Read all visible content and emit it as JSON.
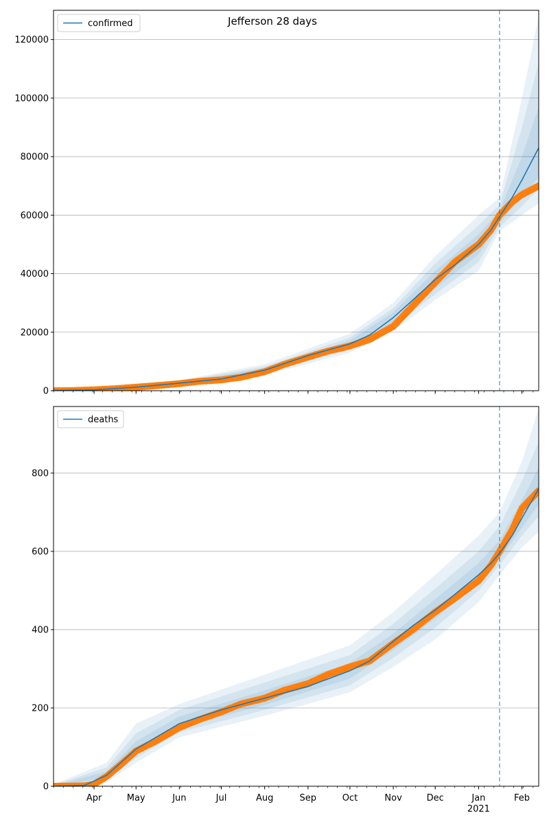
{
  "suptitle": "Jefferson 28 days",
  "colors": {
    "model": "#1f77b4",
    "observed": "#ff7f0e",
    "band": "#1f77b4",
    "grid": "#b0b0b0",
    "vline": "#1f77b4"
  },
  "x_axis": {
    "range": [
      "2020-03-03",
      "2021-02-13"
    ],
    "month_ticks": [
      {
        "date": "2020-04-01",
        "label": "Apr"
      },
      {
        "date": "2020-05-01",
        "label": "May"
      },
      {
        "date": "2020-06-01",
        "label": "Jun"
      },
      {
        "date": "2020-07-01",
        "label": "Jul"
      },
      {
        "date": "2020-08-01",
        "label": "Aug"
      },
      {
        "date": "2020-09-01",
        "label": "Sep"
      },
      {
        "date": "2020-10-01",
        "label": "Oct"
      },
      {
        "date": "2020-11-01",
        "label": "Nov"
      },
      {
        "date": "2020-12-01",
        "label": "Dec"
      },
      {
        "date": "2021-01-01",
        "label": "Jan"
      },
      {
        "date": "2021-02-01",
        "label": "Feb"
      }
    ],
    "year_label": {
      "date": "2021-01-01",
      "label": "2021"
    },
    "forecast_start": "2021-01-16"
  },
  "chart_data": [
    {
      "type": "line",
      "legend": {
        "label": "confirmed",
        "placement": "top-left"
      },
      "grid": true,
      "ylim": [
        0,
        130000
      ],
      "yticks": [
        0,
        20000,
        40000,
        60000,
        80000,
        100000,
        120000
      ],
      "model_line": [
        [
          "2020-03-03",
          100
        ],
        [
          "2020-04-01",
          300
        ],
        [
          "2020-05-01",
          1200
        ],
        [
          "2020-06-01",
          2600
        ],
        [
          "2020-07-01",
          4000
        ],
        [
          "2020-08-01",
          7000
        ],
        [
          "2020-09-01",
          12000
        ],
        [
          "2020-10-01",
          16000
        ],
        [
          "2020-10-15",
          19000
        ],
        [
          "2020-11-01",
          25000
        ],
        [
          "2020-11-15",
          31000
        ],
        [
          "2020-12-01",
          38000
        ],
        [
          "2020-12-15",
          43000
        ],
        [
          "2021-01-01",
          50000
        ],
        [
          "2021-01-10",
          55000
        ],
        [
          "2021-01-16",
          59500
        ],
        [
          "2021-01-25",
          66000
        ],
        [
          "2021-02-01",
          72000
        ],
        [
          "2021-02-13",
          83000
        ]
      ],
      "bands": [
        {
          "upper": [
            [
              "2020-03-03",
              200
            ],
            [
              "2020-06-01",
              3600
            ],
            [
              "2020-08-01",
              9000
            ],
            [
              "2020-10-01",
              19500
            ],
            [
              "2020-11-01",
              30000
            ],
            [
              "2020-12-01",
              46000
            ],
            [
              "2021-01-01",
              60000
            ],
            [
              "2021-01-16",
              66000
            ],
            [
              "2021-02-01",
              100000
            ],
            [
              "2021-02-13",
              128000
            ]
          ],
          "lower": [
            [
              "2020-03-03",
              0
            ],
            [
              "2020-06-01",
              1700
            ],
            [
              "2020-08-01",
              5300
            ],
            [
              "2020-10-01",
              13000
            ],
            [
              "2020-11-01",
              20500
            ],
            [
              "2020-12-01",
              31000
            ],
            [
              "2021-01-01",
              41000
            ],
            [
              "2021-01-16",
              54500
            ],
            [
              "2021-02-01",
              60000
            ],
            [
              "2021-02-13",
              64000
            ]
          ]
        },
        {
          "upper": [
            [
              "2020-03-03",
              170
            ],
            [
              "2020-06-01",
              3300
            ],
            [
              "2020-08-01",
              8300
            ],
            [
              "2020-10-01",
              18200
            ],
            [
              "2020-11-01",
              28200
            ],
            [
              "2020-12-01",
              43500
            ],
            [
              "2021-01-01",
              56500
            ],
            [
              "2021-01-16",
              63500
            ],
            [
              "2021-02-01",
              90000
            ],
            [
              "2021-02-13",
              112000
            ]
          ],
          "lower": [
            [
              "2020-03-03",
              30
            ],
            [
              "2020-06-01",
              2000
            ],
            [
              "2020-08-01",
              5900
            ],
            [
              "2020-10-01",
              14000
            ],
            [
              "2020-11-01",
              22000
            ],
            [
              "2020-12-01",
              33000
            ],
            [
              "2021-01-01",
              44000
            ],
            [
              "2021-01-16",
              56000
            ],
            [
              "2021-02-01",
              63000
            ],
            [
              "2021-02-13",
              69000
            ]
          ]
        },
        {
          "upper": [
            [
              "2020-03-03",
              140
            ],
            [
              "2020-06-01",
              3000
            ],
            [
              "2020-08-01",
              7700
            ],
            [
              "2020-10-01",
              17200
            ],
            [
              "2020-11-01",
              26800
            ],
            [
              "2020-12-01",
              41000
            ],
            [
              "2021-01-01",
              53500
            ],
            [
              "2021-01-16",
              61500
            ],
            [
              "2021-02-01",
              80000
            ],
            [
              "2021-02-13",
              97000
            ]
          ],
          "lower": [
            [
              "2020-03-03",
              60
            ],
            [
              "2020-06-01",
              2250
            ],
            [
              "2020-08-01",
              6400
            ],
            [
              "2020-10-01",
              14900
            ],
            [
              "2020-11-01",
              23300
            ],
            [
              "2020-12-01",
              35000
            ],
            [
              "2021-01-01",
              46500
            ],
            [
              "2021-01-16",
              57500
            ],
            [
              "2021-02-01",
              66000
            ],
            [
              "2021-02-13",
              73000
            ]
          ]
        }
      ],
      "observed": [
        [
          "2020-03-03",
          0
        ],
        [
          "2020-03-15",
          60
        ],
        [
          "2020-04-01",
          300
        ],
        [
          "2020-04-15",
          650
        ],
        [
          "2020-05-01",
          1200
        ],
        [
          "2020-05-15",
          1700
        ],
        [
          "2020-06-01",
          2400
        ],
        [
          "2020-06-15",
          3200
        ],
        [
          "2020-07-01",
          3700
        ],
        [
          "2020-07-15",
          4600
        ],
        [
          "2020-08-01",
          6500
        ],
        [
          "2020-08-15",
          9000
        ],
        [
          "2020-09-01",
          11500
        ],
        [
          "2020-09-15",
          13500
        ],
        [
          "2020-10-01",
          15300
        ],
        [
          "2020-10-15",
          17500
        ],
        [
          "2020-11-01",
          22000
        ],
        [
          "2020-11-15",
          29000
        ],
        [
          "2020-12-01",
          37000
        ],
        [
          "2020-12-15",
          44000
        ],
        [
          "2021-01-01",
          50000
        ],
        [
          "2021-01-10",
          55000
        ],
        [
          "2021-01-16",
          60000
        ],
        [
          "2021-01-25",
          64500
        ],
        [
          "2021-02-01",
          67000
        ],
        [
          "2021-02-13",
          70000
        ]
      ]
    },
    {
      "type": "line",
      "legend": {
        "label": "deaths",
        "placement": "top-left"
      },
      "grid": true,
      "ylim": [
        0,
        970
      ],
      "yticks": [
        0,
        200,
        400,
        600,
        800
      ],
      "model_line": [
        [
          "2020-03-03",
          0
        ],
        [
          "2020-03-25",
          2
        ],
        [
          "2020-04-10",
          28
        ],
        [
          "2020-05-01",
          95
        ],
        [
          "2020-06-01",
          160
        ],
        [
          "2020-07-01",
          195
        ],
        [
          "2020-08-01",
          225
        ],
        [
          "2020-09-01",
          255
        ],
        [
          "2020-10-01",
          295
        ],
        [
          "2020-10-15",
          320
        ],
        [
          "2020-11-01",
          370
        ],
        [
          "2020-11-15",
          410
        ],
        [
          "2020-12-01",
          450
        ],
        [
          "2020-12-15",
          490
        ],
        [
          "2021-01-01",
          540
        ],
        [
          "2021-01-10",
          570
        ],
        [
          "2021-01-16",
          595
        ],
        [
          "2021-01-25",
          640
        ],
        [
          "2021-02-01",
          685
        ],
        [
          "2021-02-13",
          760
        ]
      ],
      "bands": [
        {
          "upper": [
            [
              "2020-03-03",
              5
            ],
            [
              "2020-04-10",
              60
            ],
            [
              "2020-05-01",
              160
            ],
            [
              "2020-06-01",
              210
            ],
            [
              "2020-08-01",
              285
            ],
            [
              "2020-10-01",
              360
            ],
            [
              "2020-11-01",
              445
            ],
            [
              "2020-12-01",
              540
            ],
            [
              "2021-01-01",
              640
            ],
            [
              "2021-01-16",
              700
            ],
            [
              "2021-02-01",
              830
            ],
            [
              "2021-02-13",
              965
            ]
          ],
          "lower": [
            [
              "2020-03-03",
              0
            ],
            [
              "2020-04-10",
              10
            ],
            [
              "2020-05-01",
              60
            ],
            [
              "2020-06-01",
              125
            ],
            [
              "2020-08-01",
              180
            ],
            [
              "2020-10-01",
              240
            ],
            [
              "2020-11-01",
              305
            ],
            [
              "2020-12-01",
              375
            ],
            [
              "2021-01-01",
              470
            ],
            [
              "2021-01-16",
              540
            ],
            [
              "2021-02-01",
              610
            ],
            [
              "2021-02-13",
              650
            ]
          ]
        },
        {
          "upper": [
            [
              "2020-03-03",
              3
            ],
            [
              "2020-04-10",
              48
            ],
            [
              "2020-05-01",
              135
            ],
            [
              "2020-06-01",
              195
            ],
            [
              "2020-08-01",
              265
            ],
            [
              "2020-10-01",
              335
            ],
            [
              "2020-11-01",
              415
            ],
            [
              "2020-12-01",
              505
            ],
            [
              "2021-01-01",
              600
            ],
            [
              "2021-01-16",
              665
            ],
            [
              "2021-02-01",
              780
            ],
            [
              "2021-02-13",
              880
            ]
          ],
          "lower": [
            [
              "2020-03-03",
              0
            ],
            [
              "2020-04-10",
              16
            ],
            [
              "2020-05-01",
              72
            ],
            [
              "2020-06-01",
              138
            ],
            [
              "2020-08-01",
              195
            ],
            [
              "2020-10-01",
              258
            ],
            [
              "2020-11-01",
              328
            ],
            [
              "2020-12-01",
              405
            ],
            [
              "2021-01-01",
              500
            ],
            [
              "2021-01-16",
              565
            ],
            [
              "2021-02-01",
              640
            ],
            [
              "2021-02-13",
              690
            ]
          ]
        },
        {
          "upper": [
            [
              "2020-03-03",
              1
            ],
            [
              "2020-04-10",
              38
            ],
            [
              "2020-05-01",
              115
            ],
            [
              "2020-06-01",
              178
            ],
            [
              "2020-08-01",
              245
            ],
            [
              "2020-10-01",
              315
            ],
            [
              "2020-11-01",
              390
            ],
            [
              "2020-12-01",
              478
            ],
            [
              "2021-01-01",
              570
            ],
            [
              "2021-01-16",
              628
            ],
            [
              "2021-02-01",
              730
            ],
            [
              "2021-02-13",
              815
            ]
          ],
          "lower": [
            [
              "2020-03-03",
              0
            ],
            [
              "2020-04-10",
              22
            ],
            [
              "2020-05-01",
              82
            ],
            [
              "2020-06-01",
              148
            ],
            [
              "2020-08-01",
              208
            ],
            [
              "2020-10-01",
              275
            ],
            [
              "2020-11-01",
              348
            ],
            [
              "2020-12-01",
              428
            ],
            [
              "2021-01-01",
              520
            ],
            [
              "2021-01-16",
              580
            ],
            [
              "2021-02-01",
              660
            ],
            [
              "2021-02-13",
              720
            ]
          ]
        }
      ],
      "observed": [
        [
          "2020-03-03",
          0
        ],
        [
          "2020-03-25",
          1
        ],
        [
          "2020-04-01",
          5
        ],
        [
          "2020-04-10",
          25
        ],
        [
          "2020-04-20",
          55
        ],
        [
          "2020-05-01",
          90
        ],
        [
          "2020-05-15",
          115
        ],
        [
          "2020-06-01",
          150
        ],
        [
          "2020-06-15",
          170
        ],
        [
          "2020-07-01",
          190
        ],
        [
          "2020-07-15",
          210
        ],
        [
          "2020-08-01",
          225
        ],
        [
          "2020-08-15",
          245
        ],
        [
          "2020-09-01",
          262
        ],
        [
          "2020-09-15",
          285
        ],
        [
          "2020-10-01",
          305
        ],
        [
          "2020-10-15",
          320
        ],
        [
          "2020-11-01",
          365
        ],
        [
          "2020-11-15",
          400
        ],
        [
          "2020-12-01",
          445
        ],
        [
          "2020-12-15",
          480
        ],
        [
          "2021-01-01",
          525
        ],
        [
          "2021-01-10",
          565
        ],
        [
          "2021-01-16",
          600
        ],
        [
          "2021-01-25",
          655
        ],
        [
          "2021-02-01",
          710
        ],
        [
          "2021-02-13",
          755
        ]
      ]
    }
  ]
}
